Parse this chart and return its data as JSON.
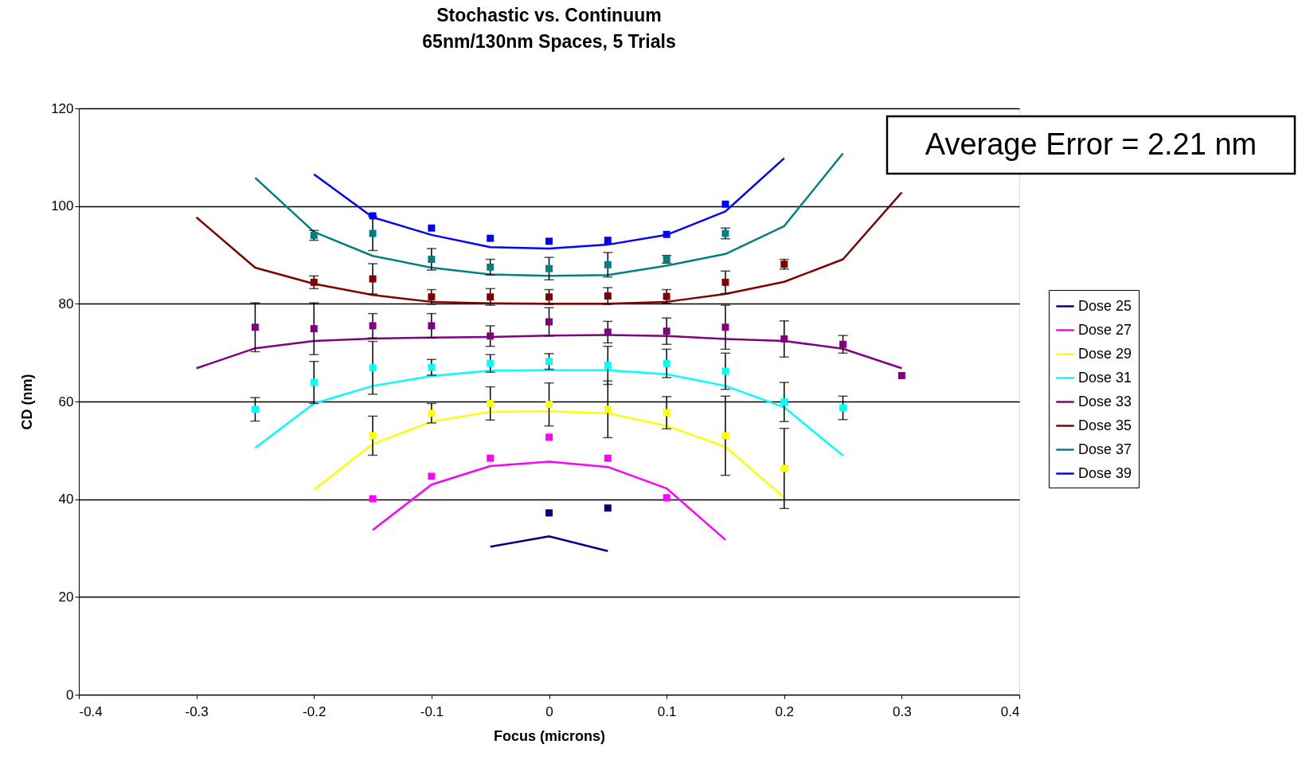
{
  "chart_data": {
    "type": "line",
    "title": "Stochastic vs. Continuum",
    "subtitle": "65nm/130nm Spaces, 5 Trials",
    "xlabel": "Focus (microns)",
    "ylabel": "CD (nm)",
    "xlim": [
      -0.4,
      0.4
    ],
    "xticks": [
      -0.4,
      -0.3,
      -0.2,
      -0.1,
      0,
      0.1,
      0.2,
      0.3,
      0.4
    ],
    "ylim": [
      0,
      120
    ],
    "yticks": [
      0,
      20,
      40,
      60,
      80,
      100,
      120
    ],
    "grid": "y",
    "legend": "right",
    "line_style": "solid",
    "annotations": [
      "Average Error = 2.21 nm"
    ],
    "series": [
      {
        "name": "Dose 25",
        "type": "line",
        "color": "#000080",
        "x": [
          -0.05,
          0,
          0.05
        ],
        "values": [
          30.3,
          32.4,
          29.4
        ]
      },
      {
        "name": "Dose 27",
        "type": "line",
        "color": "#ff00ff",
        "x": [
          -0.15,
          -0.1,
          -0.05,
          0,
          0.05,
          0.1,
          0.15
        ],
        "values": [
          33.7,
          43.0,
          46.8,
          47.7,
          46.6,
          42.2,
          31.7
        ]
      },
      {
        "name": "Dose 29",
        "type": "line",
        "color": "#ffff00",
        "x": [
          -0.2,
          -0.15,
          -0.1,
          -0.05,
          0,
          0.05,
          0.1,
          0.15,
          0.2
        ],
        "values": [
          42.0,
          51.3,
          55.9,
          57.9,
          58.0,
          57.6,
          55.0,
          50.7,
          40.3
        ]
      },
      {
        "name": "Dose 31",
        "type": "line",
        "color": "#00ffff",
        "x": [
          -0.25,
          -0.2,
          -0.15,
          -0.1,
          -0.05,
          0,
          0.05,
          0.1,
          0.15,
          0.2,
          0.25
        ],
        "values": [
          50.5,
          59.6,
          63.2,
          65.2,
          66.3,
          66.4,
          66.4,
          65.6,
          63.2,
          58.8,
          48.9
        ]
      },
      {
        "name": "Dose 33",
        "type": "line",
        "color": "#800080",
        "x": [
          -0.3,
          -0.25,
          -0.2,
          -0.15,
          -0.1,
          -0.05,
          0,
          0.05,
          0.1,
          0.15,
          0.2,
          0.25,
          0.3
        ],
        "values": [
          66.8,
          70.9,
          72.4,
          72.9,
          73.1,
          73.2,
          73.5,
          73.6,
          73.4,
          72.8,
          72.4,
          70.8,
          66.8
        ]
      },
      {
        "name": "Dose 35",
        "type": "line",
        "color": "#800000",
        "x": [
          -0.3,
          -0.25,
          -0.2,
          -0.15,
          -0.1,
          -0.05,
          0,
          0.05,
          0.1,
          0.15,
          0.2,
          0.25,
          0.3
        ],
        "values": [
          97.7,
          87.4,
          84.1,
          81.8,
          80.4,
          80.1,
          80.0,
          80.0,
          80.4,
          82.0,
          84.5,
          89.1,
          102.8
        ]
      },
      {
        "name": "Dose 37",
        "type": "line",
        "color": "#008080",
        "x": [
          -0.25,
          -0.2,
          -0.15,
          -0.1,
          -0.05,
          0,
          0.05,
          0.1,
          0.15,
          0.2,
          0.25
        ],
        "values": [
          105.8,
          94.7,
          89.8,
          87.4,
          86.0,
          85.7,
          85.9,
          87.8,
          90.2,
          95.9,
          110.8
        ]
      },
      {
        "name": "Dose 39",
        "type": "line",
        "color": "#0000ff",
        "x": [
          -0.2,
          -0.15,
          -0.1,
          -0.05,
          0,
          0.05,
          0.1,
          0.15,
          0.2
        ],
        "values": [
          106.5,
          97.7,
          94.1,
          91.6,
          91.3,
          92.1,
          94.1,
          98.9,
          109.8
        ]
      },
      {
        "type": "scatter",
        "marker": "square",
        "color": "#000080",
        "x": [
          0,
          0.05
        ],
        "values": [
          37.2,
          38.2
        ]
      },
      {
        "type": "scatter",
        "marker": "square",
        "color": "#ff00ff",
        "x": [
          -0.15,
          -0.1,
          -0.05,
          0,
          0.05,
          0.1
        ],
        "values": [
          40.1,
          44.7,
          48.4,
          52.7,
          48.4,
          40.3
        ]
      },
      {
        "type": "scatter",
        "marker": "square",
        "color": "#ffff00",
        "x": [
          -0.15,
          -0.1,
          -0.05,
          0,
          0.05,
          0.1,
          0.15,
          0.2
        ],
        "values": [
          53.0,
          57.6,
          59.6,
          59.4,
          58.4,
          57.7,
          53.0,
          46.3
        ],
        "errors": [
          4.0,
          2.0,
          3.4,
          4.4,
          5.8,
          3.3,
          8.1,
          8.2
        ]
      },
      {
        "type": "scatter",
        "marker": "square",
        "color": "#00ffff",
        "x": [
          -0.25,
          -0.2,
          -0.15,
          -0.1,
          -0.05,
          0,
          0.05,
          0.1,
          0.15,
          0.2,
          0.25
        ],
        "values": [
          58.4,
          63.9,
          66.9,
          67.0,
          67.8,
          68.2,
          67.4,
          67.8,
          66.2,
          59.9,
          58.7
        ],
        "errors": [
          2.4,
          4.3,
          5.4,
          1.6,
          1.8,
          1.6,
          3.9,
          2.9,
          3.7,
          4.0,
          2.4
        ]
      },
      {
        "type": "scatter",
        "marker": "square",
        "color": "#800080",
        "x": [
          -0.25,
          -0.2,
          -0.15,
          -0.1,
          -0.05,
          0,
          0.05,
          0.1,
          0.15,
          0.2,
          0.25,
          0.3
        ],
        "values": [
          75.2,
          74.9,
          75.5,
          75.5,
          73.4,
          76.3,
          74.2,
          74.4,
          75.2,
          72.8,
          71.7,
          65.3
        ],
        "errors": [
          5.0,
          5.3,
          2.5,
          2.5,
          2.1,
          2.9,
          2.2,
          2.7,
          4.5,
          3.7,
          1.8,
          null
        ]
      },
      {
        "type": "scatter",
        "marker": "square",
        "color": "#800000",
        "x": [
          -0.2,
          -0.15,
          -0.1,
          -0.05,
          0,
          0.05,
          0.1,
          0.15,
          0.2
        ],
        "values": [
          84.4,
          85.1,
          81.4,
          81.4,
          81.4,
          81.6,
          81.5,
          84.4,
          88.1
        ],
        "errors": [
          1.3,
          3.1,
          1.5,
          1.7,
          1.5,
          1.7,
          1.4,
          2.3,
          1.0
        ]
      },
      {
        "type": "scatter",
        "marker": "square",
        "color": "#008080",
        "x": [
          -0.2,
          -0.15,
          -0.1,
          -0.05,
          0,
          0.05,
          0.1,
          0.15
        ],
        "values": [
          94.0,
          94.4,
          89.1,
          87.5,
          87.2,
          88.0,
          89.1,
          94.4
        ],
        "errors": [
          1.0,
          3.5,
          2.2,
          1.6,
          2.3,
          2.5,
          0.8,
          1.1
        ]
      },
      {
        "type": "scatter",
        "marker": "square",
        "color": "#0000ff",
        "x": [
          -0.15,
          -0.1,
          -0.05,
          0,
          0.05,
          0.1,
          0.15
        ],
        "values": [
          98.0,
          95.5,
          93.4,
          92.8,
          93.0,
          94.2,
          100.4
        ]
      }
    ]
  }
}
